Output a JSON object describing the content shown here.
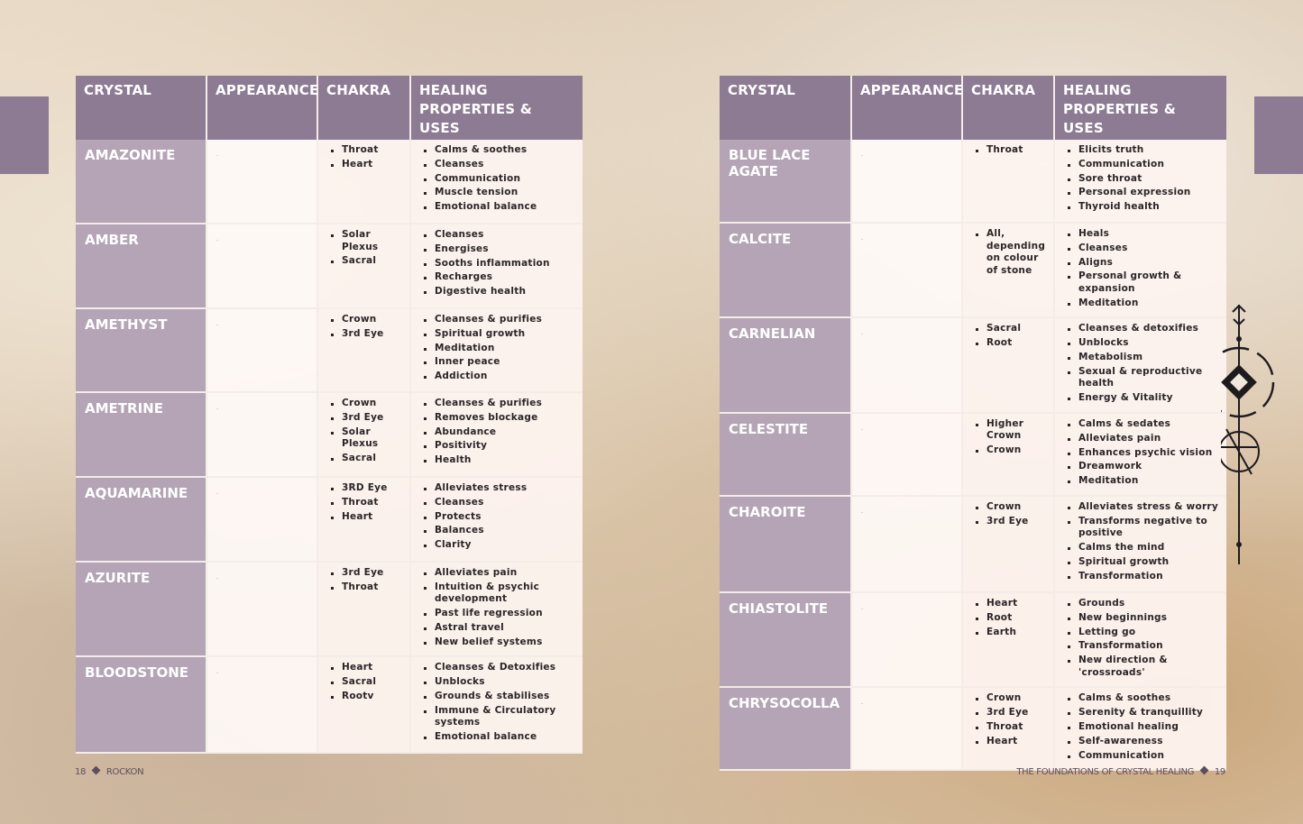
{
  "headers": {
    "crystal": "CRYSTAL",
    "appearance": "APPEARANCE",
    "chakra": "CHAKRA",
    "healing": "HEALING PROPERTIES & USES"
  },
  "left_rows": [
    {
      "name": "AMAZONITE",
      "appearance": ".",
      "chakra": [
        "Throat",
        "Heart"
      ],
      "healing": [
        "Calms & soothes",
        "Cleanses",
        "Communication",
        "Muscle tension",
        "Emotional balance"
      ]
    },
    {
      "name": "AMBER",
      "appearance": ".",
      "chakra": [
        "Solar Plexus",
        "Sacral"
      ],
      "healing": [
        "Cleanses",
        "Energises",
        "Sooths inflammation",
        "Recharges",
        "Digestive health"
      ]
    },
    {
      "name": "AMETHYST",
      "appearance": ".",
      "chakra": [
        "Crown",
        "3rd Eye"
      ],
      "healing": [
        "Cleanses & purifies",
        "Spiritual growth",
        "Meditation",
        "Inner peace",
        "Addiction"
      ]
    },
    {
      "name": "AMETRINE",
      "appearance": ".",
      "chakra": [
        "Crown",
        "3rd Eye",
        "Solar Plexus",
        "Sacral"
      ],
      "healing": [
        "Cleanses & purifies",
        "Removes blockage",
        "Abundance",
        "Positivity",
        "Health"
      ]
    },
    {
      "name": "AQUAMARINE",
      "appearance": ".",
      "chakra": [
        "3RD Eye",
        "Throat",
        "Heart"
      ],
      "healing": [
        "Alleviates stress",
        "Cleanses",
        "Protects",
        "Balances",
        "Clarity"
      ]
    },
    {
      "name": "AZURITE",
      "appearance": ".",
      "chakra": [
        "3rd Eye",
        "Throat"
      ],
      "healing": [
        "Alleviates pain",
        "Intuition & psychic development",
        "Past life regression",
        "Astral travel",
        "New belief systems"
      ]
    },
    {
      "name": "BLOODSTONE",
      "appearance": ".",
      "chakra": [
        "Heart",
        "Sacral",
        "Rootv"
      ],
      "healing": [
        "Cleanses & Detoxifies",
        "Unblocks",
        "Grounds & stabilises",
        "Immune & Circulatory systems",
        "Emotional balance"
      ]
    }
  ],
  "right_rows": [
    {
      "name": "BLUE LACE AGATE",
      "appearance": ".",
      "chakra": [
        "Throat"
      ],
      "healing": [
        "Elicits truth",
        "Communication",
        "Sore throat",
        "Personal expression",
        "Thyroid health"
      ]
    },
    {
      "name": "CALCITE",
      "appearance": ".",
      "chakra": [
        "All, depending on colour of stone"
      ],
      "healing": [
        "Heals",
        "Cleanses",
        "Aligns",
        "Personal growth & expansion",
        "Meditation"
      ]
    },
    {
      "name": "CARNELIAN",
      "appearance": ".",
      "chakra": [
        "Sacral",
        "Root"
      ],
      "healing": [
        "Cleanses & detoxifies",
        "Unblocks",
        "Metabolism",
        "Sexual & reproductive health",
        "Energy & Vitality"
      ]
    },
    {
      "name": "CELESTITE",
      "appearance": ".",
      "chakra": [
        "Higher Crown",
        "Crown"
      ],
      "healing": [
        "Calms & sedates",
        "Alleviates pain",
        "Enhances psychic vision",
        "Dreamwork",
        "Meditation"
      ]
    },
    {
      "name": "CHAROITE",
      "appearance": ".",
      "chakra": [
        "Crown",
        "3rd Eye"
      ],
      "healing": [
        "Alleviates stress & worry",
        "Transforms negative to positive",
        "Calms the mind",
        "Spiritual growth",
        "Transformation"
      ]
    },
    {
      "name": "CHIASTOLITE",
      "appearance": ".",
      "chakra": [
        "Heart",
        "Root",
        "Earth"
      ],
      "healing": [
        "Grounds",
        "New beginnings",
        "Letting go",
        "Transformation",
        "New direction & 'crossroads'"
      ]
    },
    {
      "name": "CHRYSOCOLLA",
      "appearance": ".",
      "chakra": [
        "Crown",
        "3rd Eye",
        "Throat",
        "Heart"
      ],
      "healing": [
        "Calms & soothes",
        "Serenity & tranquillity",
        "Emotional healing",
        "Self-awareness",
        "Communication"
      ]
    }
  ],
  "footer": {
    "left_page": "18",
    "left_title": "ROCKON",
    "right_title": "THE FOUNDATIONS OF CRYSTAL HEALING",
    "right_page": "19"
  },
  "colors": {
    "header_bg": "#8d7a93",
    "name_cell_bg": "#b4a4b6",
    "body_cell_bg": "#fdf3ef",
    "footer_text": "#5c4d60"
  },
  "icons": [
    "diamond-separator-icon",
    "arrow-compass-ornament-icon"
  ]
}
